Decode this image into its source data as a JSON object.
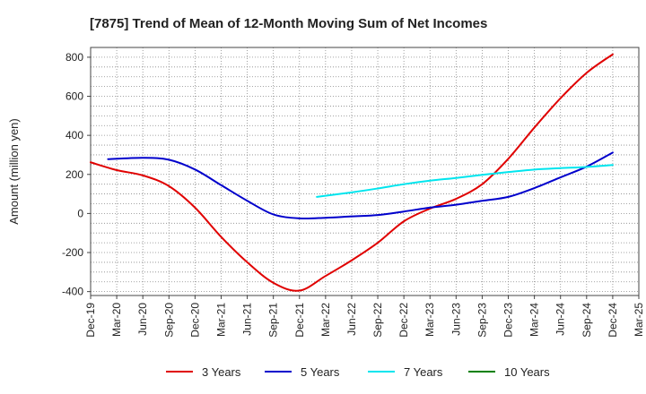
{
  "chart_data": {
    "type": "line",
    "title": "[7875]  Trend of Mean of 12-Month Moving Sum of Net Incomes",
    "xlabel": "",
    "ylabel": "Amount (million yen)",
    "ylim": [
      -420,
      850
    ],
    "yticks": [
      -400,
      -200,
      0,
      200,
      400,
      600,
      800
    ],
    "ytick_labels": [
      "-400",
      "-200",
      "0",
      "200",
      "400",
      "600",
      "800"
    ],
    "xlim": [
      "2019-12",
      "2025-03"
    ],
    "xtick_labels": [
      "Dec-19",
      "Mar-20",
      "Jun-20",
      "Sep-20",
      "Dec-20",
      "Mar-21",
      "Jun-21",
      "Sep-21",
      "Dec-21",
      "Mar-22",
      "Jun-22",
      "Sep-22",
      "Dec-22",
      "Mar-23",
      "Jun-23",
      "Sep-23",
      "Dec-23",
      "Mar-24",
      "Jun-24",
      "Sep-24",
      "Dec-24",
      "Mar-25"
    ],
    "grid": true,
    "legend_position": "bottom",
    "series": [
      {
        "name": "3 Years",
        "color": "#e00000",
        "x": [
          "2019-12",
          "2020-03",
          "2020-06",
          "2020-09",
          "2020-12",
          "2021-03",
          "2021-06",
          "2021-09",
          "2021-12",
          "2022-03",
          "2022-06",
          "2022-09",
          "2022-12",
          "2023-03",
          "2023-06",
          "2023-09",
          "2023-12",
          "2024-03",
          "2024-06",
          "2024-09",
          "2024-12"
        ],
        "values": [
          262,
          222,
          195,
          140,
          30,
          -120,
          -250,
          -355,
          -395,
          -320,
          -240,
          -150,
          -40,
          25,
          75,
          150,
          280,
          440,
          590,
          720,
          815
        ]
      },
      {
        "name": "5 Years",
        "color": "#0000cc",
        "x": [
          "2020-02",
          "2020-06",
          "2020-09",
          "2020-12",
          "2021-03",
          "2021-06",
          "2021-09",
          "2021-12",
          "2022-03",
          "2022-06",
          "2022-09",
          "2022-12",
          "2023-03",
          "2023-06",
          "2023-09",
          "2023-12",
          "2024-03",
          "2024-06",
          "2024-09",
          "2024-12"
        ],
        "values": [
          278,
          285,
          275,
          225,
          145,
          65,
          -5,
          -25,
          -22,
          -15,
          -8,
          10,
          30,
          45,
          65,
          85,
          130,
          185,
          240,
          312
        ]
      },
      {
        "name": "7 Years",
        "color": "#00e5ee",
        "x": [
          "2022-02",
          "2022-06",
          "2022-09",
          "2022-12",
          "2023-03",
          "2023-06",
          "2023-09",
          "2023-12",
          "2024-03",
          "2024-06",
          "2024-09",
          "2024-12"
        ],
        "values": [
          85,
          108,
          128,
          150,
          168,
          182,
          198,
          212,
          225,
          232,
          238,
          248
        ]
      },
      {
        "name": "10 Years",
        "color": "#008000",
        "x": [],
        "values": []
      }
    ]
  }
}
